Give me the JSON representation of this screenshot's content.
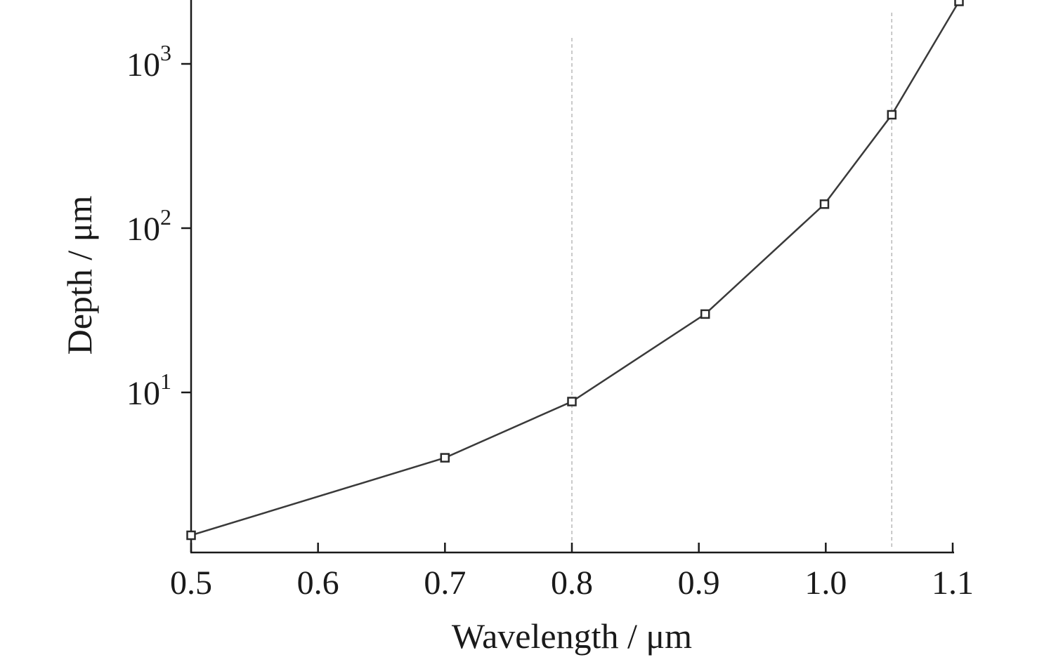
{
  "chart_data": {
    "type": "line",
    "title": "",
    "xlabel": "Wavelength / μm",
    "ylabel": "Depth / μm",
    "xlim": [
      0.5,
      1.1
    ],
    "ylim": [
      1.3,
      2500
    ],
    "yscale": "log",
    "grid": false,
    "x_ticks": [
      0.5,
      0.6,
      0.7,
      0.8,
      0.9,
      1.0,
      1.1
    ],
    "x_tick_labels": [
      "0.5",
      "0.6",
      "0.7",
      "0.8",
      "0.9",
      "1.0",
      "1.1"
    ],
    "y_ticks": [
      {
        "value": 10,
        "base": "10",
        "exp": "1"
      },
      {
        "value": 100,
        "base": "10",
        "exp": "2"
      },
      {
        "value": 1000,
        "base": "10",
        "exp": "3"
      }
    ],
    "reference_lines_x": [
      0.8,
      1.052
    ],
    "series": [
      {
        "marker": "square",
        "color": "#3a3a3a",
        "x": [
          0.5,
          0.7,
          0.8,
          0.905,
          0.999,
          1.052,
          1.105
        ],
        "y": [
          1.35,
          4.0,
          8.8,
          30,
          140,
          490,
          2400
        ]
      }
    ]
  }
}
